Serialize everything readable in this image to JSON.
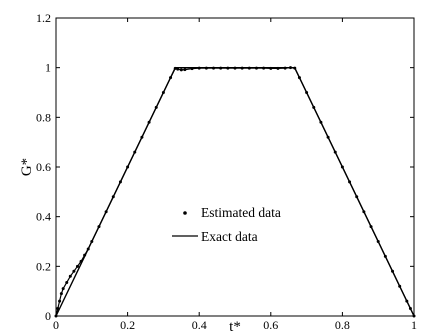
{
  "chart_data": {
    "type": "line",
    "xlabel": "t*",
    "ylabel": "G*",
    "xlim": [
      0,
      1
    ],
    "ylim": [
      0,
      1.2
    ],
    "x_ticks": [
      "0",
      "0.2",
      "0.4",
      "0.6",
      "0.8",
      "1"
    ],
    "y_ticks": [
      "0",
      "0.2",
      "0.4",
      "0.6",
      "0.8",
      "1",
      "1.2"
    ],
    "legend_position": "center",
    "series": [
      {
        "name": "Estimated data",
        "style": "dots",
        "x": [
          0,
          0.005,
          0.01,
          0.015,
          0.02,
          0.03,
          0.04,
          0.05,
          0.06,
          0.07,
          0.08,
          0.09,
          0.1,
          0.12,
          0.14,
          0.16,
          0.18,
          0.2,
          0.22,
          0.24,
          0.26,
          0.28,
          0.3,
          0.32,
          0.333,
          0.34,
          0.35,
          0.36,
          0.38,
          0.4,
          0.42,
          0.44,
          0.46,
          0.48,
          0.5,
          0.52,
          0.54,
          0.56,
          0.58,
          0.6,
          0.62,
          0.64,
          0.655,
          0.667,
          0.68,
          0.7,
          0.72,
          0.74,
          0.76,
          0.78,
          0.8,
          0.82,
          0.84,
          0.86,
          0.88,
          0.9,
          0.92,
          0.94,
          0.96,
          0.98,
          0.99,
          1.0
        ],
        "y": [
          0.0,
          0.03,
          0.06,
          0.09,
          0.11,
          0.135,
          0.16,
          0.18,
          0.2,
          0.22,
          0.245,
          0.27,
          0.3,
          0.36,
          0.42,
          0.48,
          0.54,
          0.6,
          0.66,
          0.72,
          0.78,
          0.84,
          0.9,
          0.96,
          0.997,
          0.994,
          0.991,
          0.992,
          0.996,
          0.998,
          0.998,
          0.998,
          0.998,
          0.998,
          0.998,
          0.998,
          0.998,
          0.998,
          0.998,
          0.997,
          0.997,
          0.998,
          1.0,
          0.998,
          0.96,
          0.9,
          0.84,
          0.78,
          0.72,
          0.66,
          0.6,
          0.54,
          0.48,
          0.42,
          0.36,
          0.3,
          0.24,
          0.18,
          0.12,
          0.06,
          0.03,
          0.0
        ]
      },
      {
        "name": "Exact data",
        "style": "line",
        "x": [
          0,
          0.3333,
          0.6667,
          1.0
        ],
        "y": [
          0,
          1,
          1,
          0
        ]
      }
    ]
  }
}
